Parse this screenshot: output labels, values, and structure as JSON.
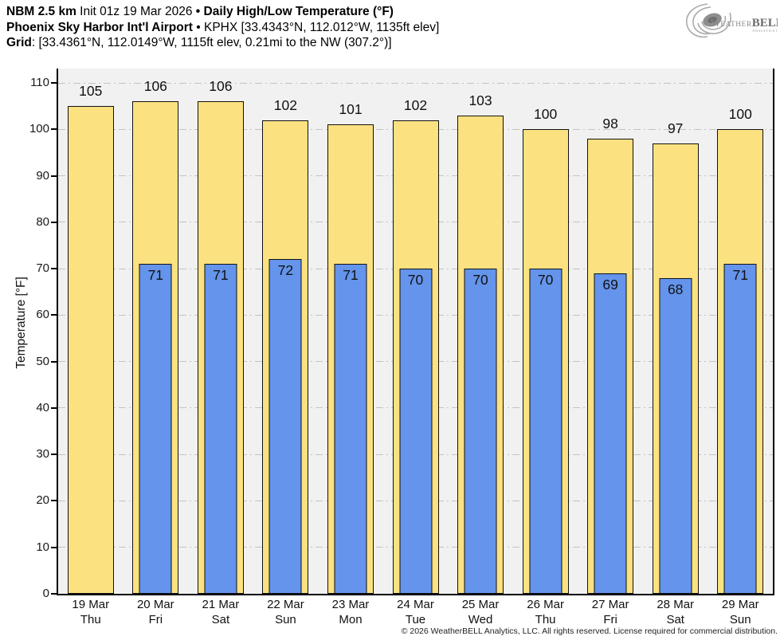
{
  "header": {
    "model": "NBM 2.5 km",
    "init": " Init 01z 19 Mar 2026 ",
    "bullet": "• ",
    "product": "Daily High/Low Temperature (°F)",
    "station_name": "Phoenix Sky Harbor Int'l Airport",
    "station_bullet": " • ",
    "station_info": "KPHX [33.4343°N, 112.012°W, 1135ft elev]",
    "grid_label": "Grid",
    "grid_info": ": [33.4361°N, 112.0149°W, 1115ft elev, 0.21mi to the NW (307.2°)]"
  },
  "logo": {
    "weather_initial": "W",
    "weather_rest": "EATHER",
    "bell": "BELL",
    "sub": "Analytics LLC"
  },
  "footer": {
    "copyright": "© 2026 WeatherBELL Analytics, LLC. All rights reserved. License required for commercial distribution."
  },
  "chart_data": {
    "type": "bar",
    "title": "Daily High/Low Temperature (°F)",
    "ylabel": "Temperature [°F]",
    "ylim": [
      0,
      113
    ],
    "yticks": [
      0,
      10,
      20,
      30,
      40,
      50,
      60,
      70,
      80,
      90,
      100,
      110
    ],
    "grid": true,
    "legend_position": "none",
    "categories": [
      {
        "date": "19 Mar",
        "day": "Thu"
      },
      {
        "date": "20 Mar",
        "day": "Fri"
      },
      {
        "date": "21 Mar",
        "day": "Sat"
      },
      {
        "date": "22 Mar",
        "day": "Sun"
      },
      {
        "date": "23 Mar",
        "day": "Mon"
      },
      {
        "date": "24 Mar",
        "day": "Tue"
      },
      {
        "date": "25 Mar",
        "day": "Wed"
      },
      {
        "date": "26 Mar",
        "day": "Thu"
      },
      {
        "date": "27 Mar",
        "day": "Fri"
      },
      {
        "date": "28 Mar",
        "day": "Sat"
      },
      {
        "date": "29 Mar",
        "day": "Sun"
      }
    ],
    "series": [
      {
        "name": "Daily High",
        "color": "#FCE181",
        "values": [
          105,
          106,
          106,
          102,
          101,
          102,
          103,
          100,
          98,
          97,
          100
        ]
      },
      {
        "name": "Daily Low",
        "color": "#6494EB",
        "values": [
          null,
          71,
          71,
          72,
          71,
          70,
          70,
          70,
          69,
          68,
          71
        ]
      }
    ],
    "colors": {
      "plot_bg": "#F1F1F1",
      "gridline": "#C3C3C3",
      "bar_outline": "#111111",
      "axis": "#000000"
    }
  }
}
